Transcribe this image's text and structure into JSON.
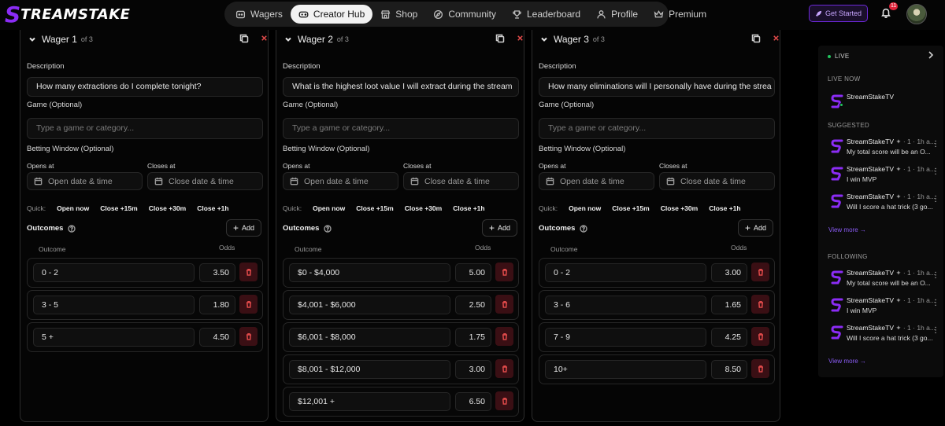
{
  "brand": {
    "logo_letter": "S",
    "logo_text": "TREAMSTAKE"
  },
  "nav": {
    "items": [
      {
        "label": "Wagers",
        "icon": "dice-icon",
        "active": false
      },
      {
        "label": "Creator Hub",
        "icon": "controller-icon",
        "active": true
      },
      {
        "label": "Shop",
        "icon": "store-icon",
        "active": false
      },
      {
        "label": "Community",
        "icon": "globe-icon",
        "active": false
      },
      {
        "label": "Leaderboard",
        "icon": "trophy-icon",
        "active": false
      },
      {
        "label": "Profile",
        "icon": "user-icon",
        "active": false
      },
      {
        "label": "Premium",
        "icon": "crown-icon",
        "active": false
      }
    ]
  },
  "header": {
    "get_started": "Get Started",
    "notifications_count": "11"
  },
  "form_labels": {
    "description": "Description",
    "game": "Game (Optional)",
    "game_placeholder": "Type a game or category...",
    "betting_window": "Betting Window (Optional)",
    "opens_at": "Opens at",
    "closes_at": "Closes at",
    "open_placeholder": "Open date & time",
    "close_placeholder": "Close date & time",
    "quick": "Quick:",
    "quick_buttons": [
      "Open now",
      "Close +15m",
      "Close +30m",
      "Close +1h"
    ],
    "outcomes": "Outcomes",
    "add": "Add",
    "col_outcome": "Outcome",
    "col_odds": "Odds"
  },
  "wagers": [
    {
      "title": "Wager 1",
      "of": "of 3",
      "description": "How many extractions do I complete tonight?",
      "outcomes": [
        {
          "label": "0 - 2",
          "odds": "3.50"
        },
        {
          "label": "3 - 5",
          "odds": "1.80"
        },
        {
          "label": "5 +",
          "odds": "4.50"
        }
      ]
    },
    {
      "title": "Wager 2",
      "of": "of 3",
      "description": "What is the highest loot value I will extract during the stream",
      "outcomes": [
        {
          "label": "$0 - $4,000",
          "odds": "5.00"
        },
        {
          "label": "$4,001 - $6,000",
          "odds": "2.50"
        },
        {
          "label": "$6,001 - $8,000",
          "odds": "1.75"
        },
        {
          "label": "$8,001 - $12,000",
          "odds": "3.00"
        },
        {
          "label": "$12,001 +",
          "odds": "6.50"
        }
      ]
    },
    {
      "title": "Wager 3",
      "of": "of 3",
      "description": "How many eliminations will I personally have during the strea",
      "outcomes": [
        {
          "label": "0 - 2",
          "odds": "3.00"
        },
        {
          "label": "3 - 6",
          "odds": "1.65"
        },
        {
          "label": "7 - 9",
          "odds": "4.25"
        },
        {
          "label": "10+",
          "odds": "8.50"
        }
      ]
    }
  ],
  "sidebar": {
    "live": "LIVE",
    "live_now": "LIVE NOW",
    "live_channel": "StreamStakeTV",
    "suggested": "SUGGESTED",
    "suggested_items": [
      {
        "name": "StreamStakeTV",
        "meta": "✦ · 1 · 1h a...",
        "sub": "My total score will be an O..."
      },
      {
        "name": "StreamStakeTV",
        "meta": "✦ · 1 · 1h a...",
        "sub": "I win MVP"
      },
      {
        "name": "StreamStakeTV",
        "meta": "✦ · 1 · 1h a...",
        "sub": "Will I score a hat trick (3 go..."
      }
    ],
    "view_more": "View more →",
    "following": "FOLLOWING",
    "following_items": [
      {
        "name": "StreamStakeTV",
        "meta": "✦ · 1 · 1h a...",
        "sub": "My total score will be an O..."
      },
      {
        "name": "StreamStakeTV",
        "meta": "✦ · 1 · 1h a...",
        "sub": "I win MVP"
      },
      {
        "name": "StreamStakeTV",
        "meta": "✦ · 1 · 1h a...",
        "sub": "Will I score a hat trick (3 go..."
      }
    ],
    "view_more_2": "View more →"
  },
  "colors": {
    "accent": "#8b2cf5",
    "delete": "#e04a4a",
    "live": "#22c55e"
  }
}
